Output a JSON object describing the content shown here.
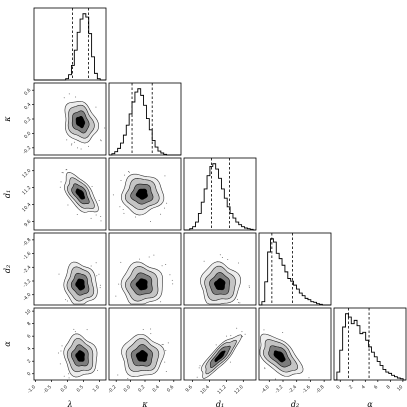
{
  "chart_data": {
    "type": "corner",
    "parameters": [
      {
        "key": "lambda",
        "label": "λ",
        "ticks": [
          "-1.0",
          "-0.5",
          "0.0",
          "0.5",
          "1.0"
        ],
        "range": [
          -1.05,
          1.2
        ],
        "quantiles": [
          0.15,
          0.65
        ],
        "center": 0.4,
        "spread": 0.25,
        "hist": [
          0,
          0,
          0,
          0,
          0,
          0,
          0,
          0,
          0,
          0,
          0,
          0.02,
          0.08,
          0.22,
          0.45,
          0.72,
          0.92,
          1.0,
          0.95,
          0.7,
          0.35,
          0.1,
          0.02,
          0,
          0
        ]
      },
      {
        "key": "kappa",
        "label": "κ",
        "ticks": [
          "-0.2",
          "0.0",
          "0.2",
          "0.4",
          "0.6"
        ],
        "range": [
          -0.3,
          0.7
        ],
        "quantiles": [
          0.02,
          0.3
        ],
        "center": 0.16,
        "spread": 0.14,
        "hist": [
          0,
          0.02,
          0.05,
          0.1,
          0.18,
          0.3,
          0.45,
          0.62,
          0.8,
          0.95,
          1.0,
          0.9,
          0.75,
          0.55,
          0.38,
          0.22,
          0.12,
          0.06,
          0.03,
          0.01,
          0,
          0,
          0,
          0,
          0
        ]
      },
      {
        "key": "d1",
        "label": "d₁",
        "ticks": [
          "9.6",
          "10.4",
          "11.2",
          "12.0"
        ],
        "range": [
          9.2,
          12.6
        ],
        "quantiles": [
          10.5,
          11.35
        ],
        "center": 10.9,
        "spread": 0.45,
        "hist": [
          0,
          0,
          0.02,
          0.05,
          0.12,
          0.25,
          0.42,
          0.62,
          0.82,
          0.96,
          1.0,
          0.92,
          0.78,
          0.62,
          0.48,
          0.35,
          0.25,
          0.18,
          0.12,
          0.08,
          0.05,
          0.03,
          0.02,
          0.01,
          0
        ]
      },
      {
        "key": "d2",
        "label": "d₂",
        "ticks": [
          "-4.0",
          "-3.2",
          "-2.4",
          "-1.6",
          "-0.8"
        ],
        "range": [
          -4.6,
          -0.4
        ],
        "quantiles": [
          -3.85,
          -2.65
        ],
        "center": -3.4,
        "spread": 0.6,
        "hist": [
          0,
          0.05,
          0.35,
          0.8,
          1.0,
          0.95,
          0.78,
          0.7,
          0.6,
          0.5,
          0.4,
          0.36,
          0.3,
          0.24,
          0.18,
          0.14,
          0.1,
          0.08,
          0.05,
          0.04,
          0.02,
          0.01,
          0,
          0,
          0
        ]
      },
      {
        "key": "alpha",
        "label": "α",
        "ticks": [
          "0",
          "2",
          "4",
          "6",
          "8",
          "10"
        ],
        "range": [
          -1,
          10.5
        ],
        "quantiles": [
          1.3,
          4.6
        ],
        "center": 2.8,
        "spread": 1.6,
        "hist": [
          0,
          0.12,
          0.45,
          0.8,
          1.0,
          0.95,
          0.85,
          0.9,
          0.82,
          0.7,
          0.72,
          0.6,
          0.5,
          0.42,
          0.35,
          0.28,
          0.22,
          0.16,
          0.12,
          0.1,
          0.07,
          0.05,
          0.03,
          0.02,
          0
        ]
      }
    ],
    "correlations": {
      "1,0": -0.2,
      "2,0": -0.6,
      "2,1": 0.0,
      "3,0": -0.1,
      "3,1": 0.0,
      "3,2": 0.0,
      "4,0": -0.1,
      "4,1": 0.0,
      "4,2": 0.85,
      "4,3": -0.55
    },
    "contour_levels": 4,
    "grid": false
  }
}
